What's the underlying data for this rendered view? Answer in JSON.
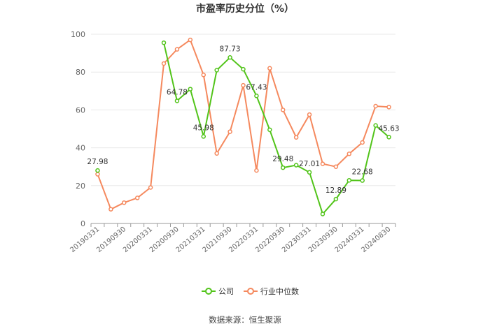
{
  "chart_data": {
    "type": "line",
    "title": "市盈率历史分位（%）",
    "ylim": [
      0,
      100
    ],
    "yticks": [
      "0",
      "20",
      "40",
      "60",
      "80",
      "100"
    ],
    "grid": true,
    "legend_position": "bottom",
    "x": [
      "20190331",
      "20190630",
      "20190930",
      "20191231",
      "20200331",
      "20200630",
      "20200930",
      "20201231",
      "20210331",
      "20210630",
      "20210930",
      "20211231",
      "20220331",
      "20220630",
      "20220930",
      "20221231",
      "20230331",
      "20230630",
      "20230930",
      "20231231",
      "20240331",
      "20240630",
      "20240830"
    ],
    "xtick_labels": [
      "20190331",
      "20190930",
      "20200331",
      "20200930",
      "20210331",
      "20210930",
      "20220331",
      "20220930",
      "20230331",
      "20230930",
      "20240331",
      "20240830"
    ],
    "series": [
      {
        "name": "公司",
        "color": "#52c41a",
        "values": [
          27.98,
          null,
          null,
          null,
          null,
          95.5,
          64.78,
          71,
          45.98,
          81,
          87.73,
          81.5,
          67.43,
          49.5,
          29.48,
          30.8,
          27.01,
          5,
          12.89,
          22.8,
          22.68,
          51.8,
          45.63
        ],
        "data_labels": {
          "0": "27.98",
          "6": "64.78",
          "8": "45.98",
          "10": "87.73",
          "12": "67.43",
          "14": "29.48",
          "16": "27.01",
          "18": "12.89",
          "20": "22.68",
          "22": "45.63"
        }
      },
      {
        "name": "行业中位数",
        "color": "#f5895e",
        "values": [
          26,
          7.5,
          11,
          13.5,
          19,
          84.5,
          92,
          97,
          78.5,
          37,
          48.5,
          73,
          28,
          82,
          60,
          45.5,
          57.5,
          31.5,
          30,
          36.8,
          42.8,
          62,
          61.5
        ]
      }
    ]
  },
  "source_text": "数据来源：恒生聚源"
}
